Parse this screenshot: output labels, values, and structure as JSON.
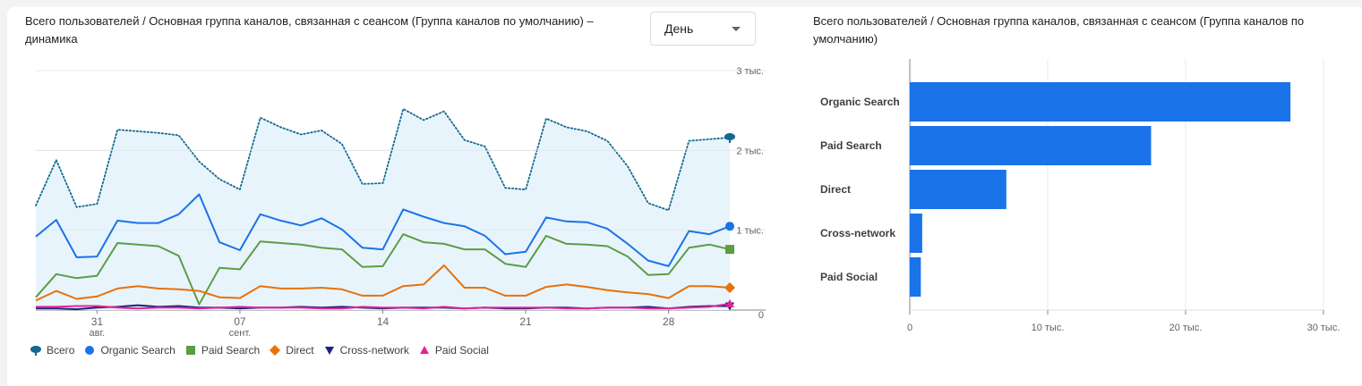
{
  "left_panel": {
    "title": "Всего пользователей / Основная группа каналов, связанная с сеансом (Группа каналов по умолчанию) – динамика",
    "granularity": {
      "selected": "День"
    }
  },
  "right_panel": {
    "title": "Всего пользователей / Основная группа каналов, связанная с сеансом (Группа каналов по умолчанию)"
  },
  "chart_data": [
    {
      "type": "line",
      "y_ticks": [
        "3 тыс.",
        "2 тыс.",
        "1 тыс.",
        "0"
      ],
      "ylim": [
        0,
        3000
      ],
      "x_tick_labels": [
        {
          "day": 3,
          "label": "31",
          "sub": "авг."
        },
        {
          "day": 10,
          "label": "07",
          "sub": "сент."
        },
        {
          "day": 17,
          "label": "14",
          "sub": ""
        },
        {
          "day": 24,
          "label": "21",
          "sub": ""
        },
        {
          "day": 31,
          "label": "28",
          "sub": ""
        }
      ],
      "grid": true,
      "legend_position": "bottom-left",
      "series": [
        {
          "name": "Всего",
          "color": "#1a73e8",
          "style": "dotted-area",
          "values": [
            1310,
            1880,
            1290,
            1330,
            2260,
            2240,
            2220,
            2190,
            1860,
            1640,
            1510,
            2410,
            2290,
            2200,
            2250,
            2080,
            1580,
            1590,
            2520,
            2380,
            2490,
            2130,
            2050,
            1530,
            1510,
            2400,
            2290,
            2240,
            2120,
            1800,
            1340,
            1250,
            2120,
            2140,
            2160
          ]
        },
        {
          "name": "Organic Search",
          "color": "#1a73e8",
          "style": "line",
          "values": [
            920,
            1130,
            660,
            670,
            1120,
            1090,
            1090,
            1200,
            1450,
            850,
            750,
            1200,
            1120,
            1060,
            1150,
            1010,
            780,
            760,
            1260,
            1170,
            1090,
            1050,
            930,
            700,
            730,
            1160,
            1110,
            1100,
            1020,
            830,
            620,
            550,
            990,
            950,
            1050
          ]
        },
        {
          "name": "Paid Search",
          "color": "#5b9d44",
          "style": "line",
          "values": [
            160,
            450,
            400,
            430,
            840,
            820,
            800,
            680,
            70,
            530,
            510,
            860,
            840,
            820,
            780,
            760,
            540,
            550,
            950,
            850,
            830,
            760,
            760,
            580,
            540,
            930,
            830,
            820,
            800,
            670,
            440,
            450,
            780,
            820,
            760
          ]
        },
        {
          "name": "Direct",
          "color": "#e8710a",
          "style": "line",
          "values": [
            120,
            240,
            140,
            170,
            270,
            300,
            270,
            260,
            240,
            160,
            150,
            300,
            270,
            270,
            280,
            260,
            180,
            180,
            300,
            320,
            560,
            280,
            280,
            180,
            180,
            290,
            320,
            290,
            250,
            220,
            200,
            150,
            300,
            300,
            280
          ]
        },
        {
          "name": "Cross-network",
          "color": "#1a237e",
          "style": "line",
          "values": [
            20,
            20,
            10,
            30,
            40,
            60,
            40,
            50,
            30,
            30,
            20,
            30,
            30,
            40,
            30,
            40,
            30,
            20,
            30,
            30,
            30,
            20,
            30,
            20,
            20,
            30,
            30,
            20,
            30,
            30,
            40,
            20,
            40,
            50,
            50
          ]
        },
        {
          "name": "Paid Social",
          "color": "#e52592",
          "style": "line",
          "values": [
            40,
            40,
            50,
            50,
            30,
            20,
            30,
            30,
            20,
            30,
            40,
            30,
            30,
            30,
            20,
            20,
            40,
            30,
            30,
            20,
            40,
            20,
            30,
            30,
            30,
            30,
            20,
            20,
            30,
            30,
            20,
            20,
            30,
            40,
            80
          ]
        }
      ]
    },
    {
      "type": "bar",
      "orientation": "horizontal",
      "categories": [
        "Organic Search",
        "Paid Search",
        "Direct",
        "Cross-network",
        "Paid Social"
      ],
      "values": [
        27600,
        17500,
        7000,
        900,
        800
      ],
      "x_ticks": [
        "0",
        "10 тыс.",
        "20 тыс.",
        "30 тыс."
      ],
      "xlim": [
        0,
        30000
      ],
      "color": "#1a73e8",
      "grid": true
    }
  ]
}
